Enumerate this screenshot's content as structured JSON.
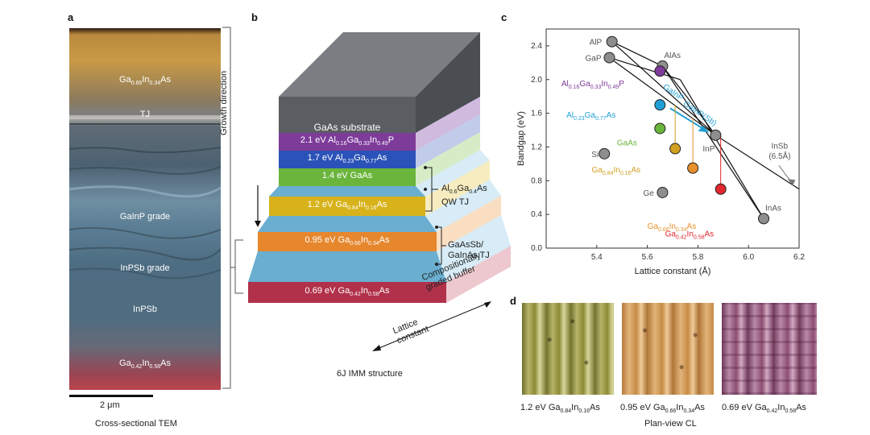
{
  "colors": {
    "tem_top": "#c99a45",
    "tem_mid": "#6f8ea2",
    "tem_bottom": "#b8454f",
    "algainp": "#7d3b9a",
    "algaas": "#2b52b8",
    "gaas": "#6bb53d",
    "gain016": "#d7b21a",
    "gain034": "#e6872e",
    "gain058": "#b2314a",
    "buffer": "#6aaed0",
    "substrate": "#5a5e63",
    "cl_green": "#8b8a35",
    "cl_orange": "#c58a45",
    "cl_purple": "#8c4e72"
  },
  "panel_a": {
    "letter": "a",
    "labels": {
      "top_layer": {
        "text": "Ga",
        "sub1": "0.66",
        "mid": "In",
        "sub2": "0.34",
        "end": "As"
      },
      "tj": "TJ",
      "gainp_grade": "GaInP grade",
      "inpsb_grade": "InPSb grade",
      "inpsb": "InPSb",
      "bottom_layer": {
        "text": "Ga",
        "sub1": "0.42",
        "mid": "In",
        "sub2": "0.58",
        "end": "As"
      }
    },
    "scale_bar": "2 μm",
    "caption": "Cross-sectional TEM"
  },
  "panel_b": {
    "letter": "b",
    "growth_direction": "Growth direction",
    "layers": [
      {
        "id": "substrate",
        "label": "GaAs substrate"
      },
      {
        "id": "algainp",
        "label": "2.1 eV Al0.16Ga0.33In0.49P"
      },
      {
        "id": "algaas",
        "label": "1.7 eV Al0.23Ga0.77As"
      },
      {
        "id": "gaas",
        "label": "1.4 eV GaAs"
      },
      {
        "id": "gain016",
        "label": "1.2 eV Ga0.84In0.16As"
      },
      {
        "id": "gain034",
        "label": "0.95 eV Ga0.66In0.34As"
      },
      {
        "id": "gain058",
        "label": "0.69 eV Ga0.42In0.58As"
      }
    ],
    "annotations": {
      "qw_tj_line1": "Al0.6Ga0.4As",
      "qw_tj_line2": "QW TJ",
      "gaassb_line1": "GaAsSb/",
      "gaassb_line2": "GaInAs TJ",
      "buffer_line1": "Compositionally",
      "buffer_line2": "graded buffer",
      "lattice_line1": "Lattice",
      "lattice_line2": "constant"
    },
    "caption": "6J IMM structure"
  },
  "panel_c": {
    "letter": "c",
    "chart_data": {
      "type": "scatter",
      "xlabel": "Lattice constant (Å)",
      "ylabel": "Bandgap (eV)",
      "xlim": [
        5.2,
        6.2
      ],
      "ylim": [
        0.0,
        2.6
      ],
      "xticks": [
        "5.4",
        "5.6",
        "5.8",
        "6.0",
        "6.2"
      ],
      "yticks": [
        "0.0",
        "0.4",
        "0.8",
        "1.2",
        "1.6",
        "2.0",
        "2.4"
      ],
      "binaries": [
        {
          "name": "AlP",
          "x": 5.46,
          "y": 2.45
        },
        {
          "name": "GaP",
          "x": 5.45,
          "y": 2.26
        },
        {
          "name": "AlAs",
          "x": 5.66,
          "y": 2.16
        },
        {
          "name": "Si",
          "x": 5.43,
          "y": 1.12
        },
        {
          "name": "Ge",
          "x": 5.66,
          "y": 0.66
        },
        {
          "name": "InP",
          "x": 5.87,
          "y": 1.34
        },
        {
          "name": "InAs",
          "x": 6.06,
          "y": 0.35
        }
      ],
      "materials": [
        {
          "name": "Al0.16Ga0.33In0.49P",
          "x": 5.65,
          "y": 2.1,
          "color": "#7d3b9a"
        },
        {
          "name": "Al0.23Ga0.77As",
          "x": 5.65,
          "y": 1.7,
          "color": "#1f9fd6"
        },
        {
          "name": "GaAs",
          "x": 5.65,
          "y": 1.42,
          "color": "#6bb53d"
        },
        {
          "name": "Ga0.84In0.16As",
          "x": 5.71,
          "y": 1.18,
          "color": "#d2a020"
        },
        {
          "name": "Ga0.66In0.34As",
          "x": 5.78,
          "y": 0.95,
          "color": "#e8902d"
        },
        {
          "name": "Ga0.42In0.58As",
          "x": 5.89,
          "y": 0.7,
          "color": "#e0272e"
        }
      ],
      "annotations": {
        "gainp": "GaInP",
        "gainpsb": "GaInP(Sb)",
        "insb_1": "InSb",
        "insb_2": "(6.5Å)"
      }
    }
  },
  "panel_d": {
    "letter": "d",
    "images": [
      {
        "label": "1.2 eV Ga0.84In0.16As"
      },
      {
        "label": "0.95 eV Ga0.66In0.34As"
      },
      {
        "label": "0.69 eV Ga0.42In0.58As"
      }
    ],
    "caption": "Plan-view CL"
  }
}
